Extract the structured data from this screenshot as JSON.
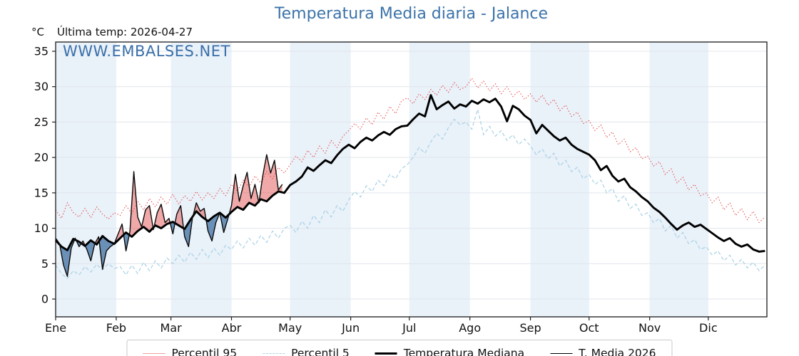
{
  "title": "Temperatura Media diaria - Jalance",
  "subtitle": {
    "units": "°C",
    "last_temp_label": "Última temp: 2026-04-27"
  },
  "watermark": "WWW.EMBALSES.NET",
  "legend": {
    "items": [
      {
        "label": "Percentil 95"
      },
      {
        "label": "Percentil 5"
      },
      {
        "label": "Temperatura Mediana"
      },
      {
        "label": "T. Media 2026"
      }
    ]
  },
  "colors": {
    "title_blue": "#3b73a9",
    "watermark_blue": "#3a70a9",
    "p95_red": "#e64545",
    "p5_blue": "#a9d2e6",
    "median_black": "#000000",
    "t2026_black": "#0a0a0a",
    "fill_above": "#e36161",
    "fill_below": "#537fab",
    "month_band": "#e9f1f9",
    "gridline": "#e1e5ec",
    "axis_border": "#1a1a1a"
  },
  "chart_data": {
    "type": "line",
    "title": "Temperatura Media diaria - Jalance",
    "x_axis": {
      "tick_labels": [
        "Ene",
        "Feb",
        "Mar",
        "Abr",
        "May",
        "Jun",
        "Jul",
        "Ago",
        "Sep",
        "Oct",
        "Nov",
        "Dic"
      ],
      "month_start_days": [
        1,
        32,
        60,
        91,
        121,
        152,
        182,
        213,
        244,
        274,
        305,
        335
      ],
      "days_in_year": 365,
      "alternating_month_shading": true
    },
    "y_axis": {
      "ticks": [
        0,
        5,
        10,
        15,
        20,
        25,
        30,
        35
      ],
      "range": [
        -2.5,
        36.4
      ],
      "unit": "°C",
      "grid": true
    },
    "legend_position": "bottom-center",
    "series": [
      {
        "name": "Percentil 95",
        "style": "dotted",
        "color": "#e64545",
        "width": 1,
        "day_start": 1,
        "day_step": 3,
        "values": [
          12.6,
          11.4,
          13.6,
          12.2,
          11.6,
          12.8,
          11.5,
          13.0,
          12.0,
          11.3,
          12.2,
          11.8,
          13.2,
          12.1,
          13.8,
          12.6,
          14.2,
          13.0,
          14.4,
          13.4,
          14.8,
          13.4,
          14.6,
          13.8,
          15.2,
          14.0,
          15.0,
          14.2,
          15.6,
          14.6,
          16.2,
          15.2,
          16.8,
          15.8,
          17.4,
          16.4,
          18.0,
          17.0,
          18.6,
          17.8,
          19.0,
          20.2,
          19.4,
          21.0,
          20.0,
          21.6,
          20.6,
          22.4,
          21.4,
          23.0,
          23.8,
          24.8,
          24.0,
          25.6,
          24.6,
          26.4,
          25.4,
          27.2,
          26.2,
          28.0,
          28.4,
          27.6,
          29.0,
          28.2,
          29.6,
          28.8,
          30.2,
          29.2,
          30.6,
          29.6,
          30.0,
          31.2,
          29.8,
          30.8,
          29.4,
          30.4,
          29.0,
          30.0,
          28.6,
          29.4,
          28.2,
          29.0,
          27.8,
          28.8,
          27.4,
          28.2,
          26.6,
          27.4,
          25.8,
          26.4,
          24.8,
          25.2,
          23.8,
          24.6,
          22.8,
          23.6,
          21.8,
          22.6,
          20.8,
          21.4,
          19.8,
          20.2,
          18.8,
          19.4,
          17.6,
          18.4,
          16.4,
          17.2,
          15.4,
          16.2,
          14.6,
          15.0,
          13.6,
          14.4,
          12.6,
          13.6,
          11.8,
          12.8,
          11.2,
          12.4,
          10.8,
          11.6
        ]
      },
      {
        "name": "Percentil 5",
        "style": "dashed",
        "color": "#a9d2e6",
        "width": 1.2,
        "day_start": 1,
        "day_step": 3,
        "values": [
          4.8,
          3.6,
          2.9,
          4.0,
          3.4,
          4.6,
          3.8,
          4.9,
          4.1,
          5.0,
          4.3,
          4.6,
          3.4,
          4.8,
          3.6,
          5.2,
          4.0,
          5.4,
          4.4,
          5.8,
          5.0,
          6.2,
          5.2,
          6.6,
          5.6,
          7.0,
          5.8,
          7.2,
          6.2,
          7.6,
          7.0,
          8.2,
          7.2,
          8.6,
          7.6,
          9.0,
          8.0,
          9.6,
          8.6,
          10.0,
          10.4,
          9.4,
          11.0,
          10.0,
          11.8,
          10.8,
          12.6,
          11.6,
          13.2,
          12.4,
          14.0,
          15.2,
          14.4,
          16.0,
          15.2,
          16.8,
          16.0,
          17.6,
          17.0,
          18.4,
          19.0,
          20.0,
          21.4,
          20.6,
          22.2,
          23.4,
          22.6,
          24.2,
          25.4,
          24.6,
          25.0,
          24.0,
          26.8,
          23.2,
          24.4,
          23.0,
          23.8,
          22.4,
          23.2,
          21.8,
          22.6,
          21.6,
          20.4,
          21.2,
          19.8,
          20.6,
          18.8,
          19.6,
          18.0,
          18.6,
          17.0,
          17.6,
          16.2,
          16.8,
          15.0,
          15.6,
          13.8,
          14.6,
          12.8,
          13.4,
          11.8,
          12.2,
          10.8,
          11.4,
          9.6,
          10.4,
          8.6,
          9.4,
          7.8,
          8.4,
          7.0,
          7.4,
          6.2,
          6.8,
          5.4,
          6.2,
          4.8,
          5.6,
          4.4,
          5.2,
          4.0,
          4.8
        ]
      },
      {
        "name": "Temperatura Mediana",
        "style": "solid",
        "color": "#000000",
        "width": 2.9,
        "day_start": 1,
        "day_step": 3,
        "values": [
          8.3,
          7.4,
          6.9,
          8.5,
          8.1,
          7.5,
          8.3,
          7.7,
          8.9,
          8.2,
          7.8,
          8.6,
          9.4,
          8.8,
          9.6,
          10.2,
          9.5,
          10.4,
          10.0,
          10.6,
          10.9,
          10.4,
          9.9,
          11.2,
          12.4,
          11.6,
          11.0,
          11.7,
          12.2,
          11.5,
          12.3,
          13.0,
          12.6,
          13.6,
          13.2,
          14.1,
          13.8,
          14.6,
          15.2,
          15.0,
          16.1,
          16.6,
          17.3,
          18.6,
          18.1,
          18.9,
          19.6,
          19.2,
          20.3,
          21.2,
          21.8,
          21.3,
          22.2,
          22.8,
          22.4,
          23.1,
          23.6,
          23.2,
          24.0,
          24.4,
          24.5,
          25.4,
          26.2,
          25.8,
          28.8,
          26.8,
          27.4,
          27.9,
          26.9,
          27.5,
          27.2,
          28.0,
          27.6,
          28.2,
          27.8,
          28.3,
          27.2,
          25.1,
          27.3,
          26.8,
          25.9,
          25.3,
          23.4,
          24.6,
          23.8,
          23.0,
          22.4,
          22.8,
          21.8,
          21.2,
          20.8,
          20.4,
          19.6,
          18.2,
          18.8,
          17.4,
          16.6,
          17.0,
          15.8,
          15.2,
          14.4,
          13.8,
          12.9,
          12.3,
          11.5,
          10.6,
          9.8,
          10.4,
          10.8,
          10.2,
          10.5,
          9.9,
          9.3,
          8.7,
          8.2,
          8.6,
          7.8,
          7.4,
          7.7,
          7.0,
          6.7,
          6.8
        ]
      },
      {
        "name": "T. Media 2026",
        "style": "solid",
        "color": "#0a0a0a",
        "width": 1.4,
        "day_start": 1,
        "day_step": 2,
        "last_date": "2026-04-27",
        "fill_vs_median": true,
        "values": [
          8.6,
          7.8,
          4.8,
          3.2,
          7.2,
          8.6,
          7.4,
          8.2,
          7.0,
          5.4,
          7.8,
          8.8,
          4.2,
          6.8,
          7.4,
          7.8,
          9.2,
          10.6,
          6.8,
          9.5,
          18.0,
          11.6,
          10.2,
          12.6,
          13.2,
          9.8,
          12.2,
          13.4,
          10.8,
          11.4,
          9.2,
          12.0,
          13.2,
          8.8,
          7.4,
          11.4,
          13.6,
          12.4,
          12.8,
          9.6,
          8.2,
          10.8,
          12.2,
          9.4,
          11.2,
          13.2,
          17.6,
          13.8,
          16.0,
          17.9,
          14.2,
          16.2,
          13.6,
          17.4,
          20.4,
          17.8,
          19.6,
          15.4,
          16.2
        ]
      }
    ]
  }
}
